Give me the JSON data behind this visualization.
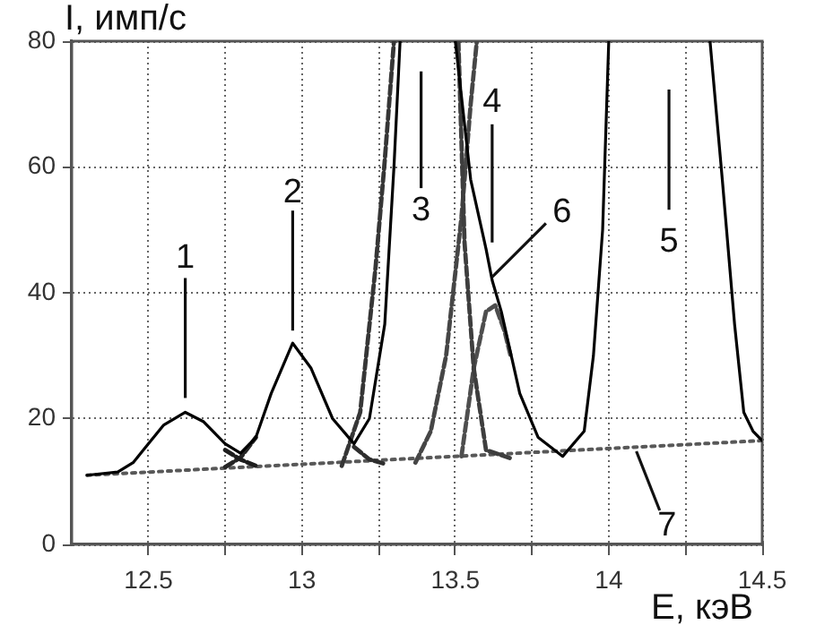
{
  "chart_data": {
    "type": "line",
    "xlabel": "E, кэВ",
    "ylabel": "I, имп/с",
    "xlim": [
      12.25,
      14.5
    ],
    "ylim": [
      0,
      80
    ],
    "xticks": [
      12.5,
      {
        "value": 12.75,
        "label": null
      },
      13,
      {
        "value": 13.25,
        "label": null
      },
      13.5,
      {
        "value": 13.75,
        "label": null
      },
      14,
      {
        "value": 14.25,
        "label": null
      },
      14.5
    ],
    "yticks": [
      0,
      20,
      40,
      60,
      80
    ],
    "grid": true,
    "legend": false,
    "marker": "none",
    "series": [
      {
        "color": "#000000",
        "line_style": "solid",
        "x": [
          12.3,
          12.4,
          12.45,
          12.5,
          12.55,
          12.62,
          12.68,
          12.75,
          12.8,
          12.85,
          12.9,
          12.97,
          13.03,
          13.1,
          13.17,
          13.22,
          13.27,
          13.3,
          13.32,
          13.4,
          13.5,
          13.55,
          13.6,
          13.62,
          13.65,
          13.71,
          13.77,
          13.85,
          13.92,
          13.95,
          13.98,
          14.0,
          14.2,
          14.33,
          14.37,
          14.41,
          14.44,
          14.47,
          14.5
        ],
        "values": [
          11,
          11.5,
          13,
          16,
          19,
          21,
          19.5,
          16,
          14.5,
          17,
          24,
          32,
          28,
          20,
          16,
          20,
          35,
          60,
          80,
          null,
          80,
          58,
          47,
          42,
          37,
          24,
          17,
          14,
          18,
          30,
          50,
          80,
          null,
          80,
          58,
          35,
          21,
          18,
          16.5
        ]
      },
      {
        "color": "#1e1e1e",
        "line_style": "dashed",
        "x": [
          12.75,
          12.8,
          12.85
        ],
        "values": [
          15,
          13.5,
          12.5
        ]
      },
      {
        "color": "#262626",
        "line_style": "dashed",
        "x": [
          12.75,
          12.8,
          12.85
        ],
        "values": [
          12.3,
          13.8,
          17
        ]
      },
      {
        "color": "#2e2e2e",
        "line_style": "dashed",
        "x": [
          13.17,
          13.22,
          13.27
        ],
        "values": [
          15.5,
          13.5,
          12.8
        ]
      },
      {
        "color": "#363636",
        "line_style": "dashed",
        "x": [
          13.13,
          13.19,
          13.24,
          13.27,
          13.3
        ],
        "values": [
          12.5,
          21,
          44,
          61,
          80
        ]
      },
      {
        "color": "#3e3e3e",
        "line_style": "dashed",
        "x": [
          13.51,
          13.53,
          13.56,
          13.6,
          13.68
        ],
        "values": [
          80,
          48,
          28,
          15,
          13.7
        ]
      },
      {
        "color": "#464646",
        "line_style": "dashed",
        "x": [
          13.37,
          13.42,
          13.47,
          13.52,
          13.55,
          13.57
        ],
        "values": [
          13,
          18,
          30,
          52,
          70,
          80
        ]
      },
      {
        "color": "#4e4e4e",
        "line_style": "dashed",
        "x": [
          13.52,
          13.56,
          13.6,
          13.63,
          13.66,
          13.68
        ],
        "values": [
          14,
          28,
          37,
          38,
          34,
          30
        ]
      },
      {
        "color": "#585858",
        "line_style": "dotted",
        "x": [
          12.3,
          14.5
        ],
        "values": [
          11,
          16.5
        ]
      }
    ],
    "annotations": [
      {
        "text": "1",
        "x": 12.62,
        "y": 21
      },
      {
        "text": "2",
        "x": 12.97,
        "y": 32
      },
      "3",
      {
        "text": "4",
        "x": 13.62,
        "y": 48
      },
      "5",
      {
        "text": "6",
        "x": 13.62,
        "y": 42.5
      },
      {
        "text": "7",
        "x": 14.09,
        "y": 14.8
      }
    ]
  }
}
